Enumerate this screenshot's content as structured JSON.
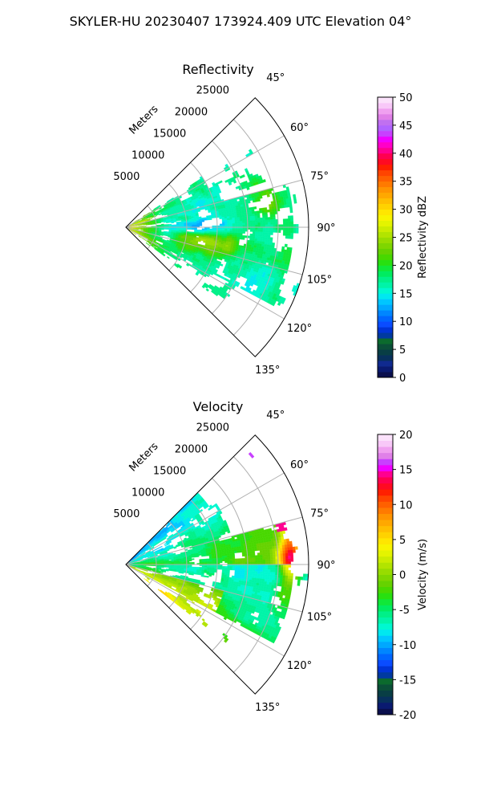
{
  "suptitle": "SKYLER-HU  20230407  173924.409 UTC Elevation 04°",
  "chart_data": [
    {
      "type": "heatmap",
      "title": "Reflectivity",
      "projection": "polar sector",
      "azimuth_range_deg": [
        45,
        135
      ],
      "azimuth_ticks": [
        "45°",
        "60°",
        "75°",
        "90°",
        "105°",
        "120°",
        "135°"
      ],
      "range_max_m": 30000,
      "range_label": "Meters",
      "range_ticks": [
        "5000",
        "10000",
        "15000",
        "20000",
        "25000"
      ],
      "grid": true,
      "colorbar": {
        "label": "Reflectivity dBZ",
        "min": 0,
        "max": 50,
        "ticks": [
          "0",
          "5",
          "10",
          "15",
          "20",
          "25",
          "30",
          "35",
          "40",
          "45",
          "50"
        ],
        "colors": [
          "#0a0f4d",
          "#0a1a70",
          "#102a8f",
          "#07305c",
          "#083e45",
          "#0a4f38",
          "#0b6a2d",
          "#003aa0",
          "#0034d6",
          "#0a4cff",
          "#0066ff",
          "#0086ff",
          "#00a8ff",
          "#00c6ff",
          "#00e8f0",
          "#00f8d0",
          "#00f4a8",
          "#00f088",
          "#00ec60",
          "#10e838",
          "#28e010",
          "#48d800",
          "#66d200",
          "#7fd600",
          "#98dc00",
          "#b2e400",
          "#ccec00",
          "#e4f400",
          "#f8f400",
          "#ffe600",
          "#ffd200",
          "#ffbe00",
          "#ffa800",
          "#ff9400",
          "#ff7a00",
          "#ff6000",
          "#ff4400",
          "#ff2000",
          "#ff0a22",
          "#ff0050",
          "#ff0090",
          "#ff00c8",
          "#f000ff",
          "#c840ff",
          "#b064ff",
          "#c070f0",
          "#e080e8",
          "#f0a0f0",
          "#f8c8f8",
          "#fbe2fb"
        ]
      },
      "field": "reflectivity"
    },
    {
      "type": "heatmap",
      "title": "Velocity",
      "projection": "polar sector",
      "azimuth_range_deg": [
        45,
        135
      ],
      "azimuth_ticks": [
        "45°",
        "60°",
        "75°",
        "90°",
        "105°",
        "120°",
        "135°"
      ],
      "range_max_m": 30000,
      "range_label": "Meters",
      "range_ticks": [
        "5000",
        "10000",
        "15000",
        "20000",
        "25000"
      ],
      "grid": true,
      "colorbar": {
        "label": "Velocity (m/s)",
        "min": -20,
        "max": 20,
        "ticks": [
          "-20",
          "-15",
          "-10",
          "-5",
          "0",
          "5",
          "10",
          "15",
          "20"
        ],
        "colors": [
          "#0a0f4d",
          "#0a1a70",
          "#07305c",
          "#083e45",
          "#0a4f38",
          "#0b6a2d",
          "#003aa0",
          "#0034d6",
          "#0a4cff",
          "#0066ff",
          "#0086ff",
          "#00a8ff",
          "#00c6ff",
          "#00e8f0",
          "#00f8d0",
          "#00f4a8",
          "#00f088",
          "#00ec60",
          "#10e838",
          "#28e010",
          "#48d800",
          "#66d200",
          "#7fd600",
          "#98dc00",
          "#b2e400",
          "#ccec00",
          "#e4f400",
          "#f8f400",
          "#ffe600",
          "#ffd200",
          "#ffbe00",
          "#ffa800",
          "#ff9400",
          "#ff7a00",
          "#ff6000",
          "#ff4400",
          "#ff2000",
          "#ff0a22",
          "#ff0050",
          "#ff0090",
          "#f000ff",
          "#c840ff",
          "#e080e8",
          "#f0a0f0",
          "#f8c8f8",
          "#fbe2fb"
        ]
      },
      "field": "velocity"
    }
  ]
}
